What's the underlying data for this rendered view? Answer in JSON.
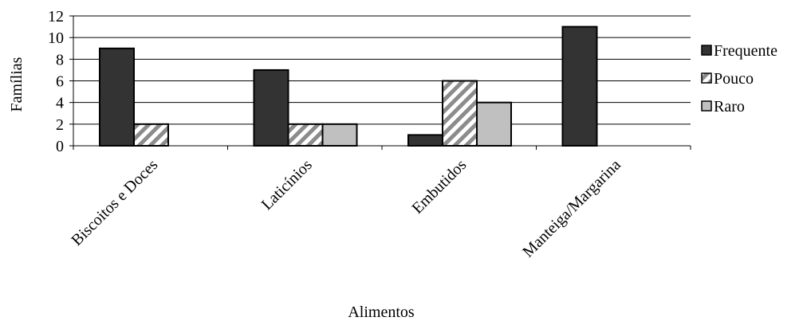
{
  "chart_data": {
    "type": "bar",
    "title": "",
    "xlabel": "Alimentos",
    "ylabel": "Famílias",
    "ylim": [
      0,
      12
    ],
    "ytick_step": 2,
    "grid": true,
    "legend_position": "right",
    "categories": [
      "Biscoitos e Doces",
      "Laticínios",
      "Embutidos",
      "Manteiga/Margarina"
    ],
    "series": [
      {
        "name": "Frequente",
        "values": [
          9,
          7,
          1,
          11
        ],
        "color": "#333333",
        "pattern": "solid"
      },
      {
        "name": "Pouco",
        "values": [
          2,
          2,
          6,
          0
        ],
        "color": "#ffffff",
        "pattern": "diagonal-stripes"
      },
      {
        "name": "Raro",
        "values": [
          0,
          2,
          4,
          0
        ],
        "color": "#c0c0c0",
        "pattern": "solid"
      }
    ]
  }
}
